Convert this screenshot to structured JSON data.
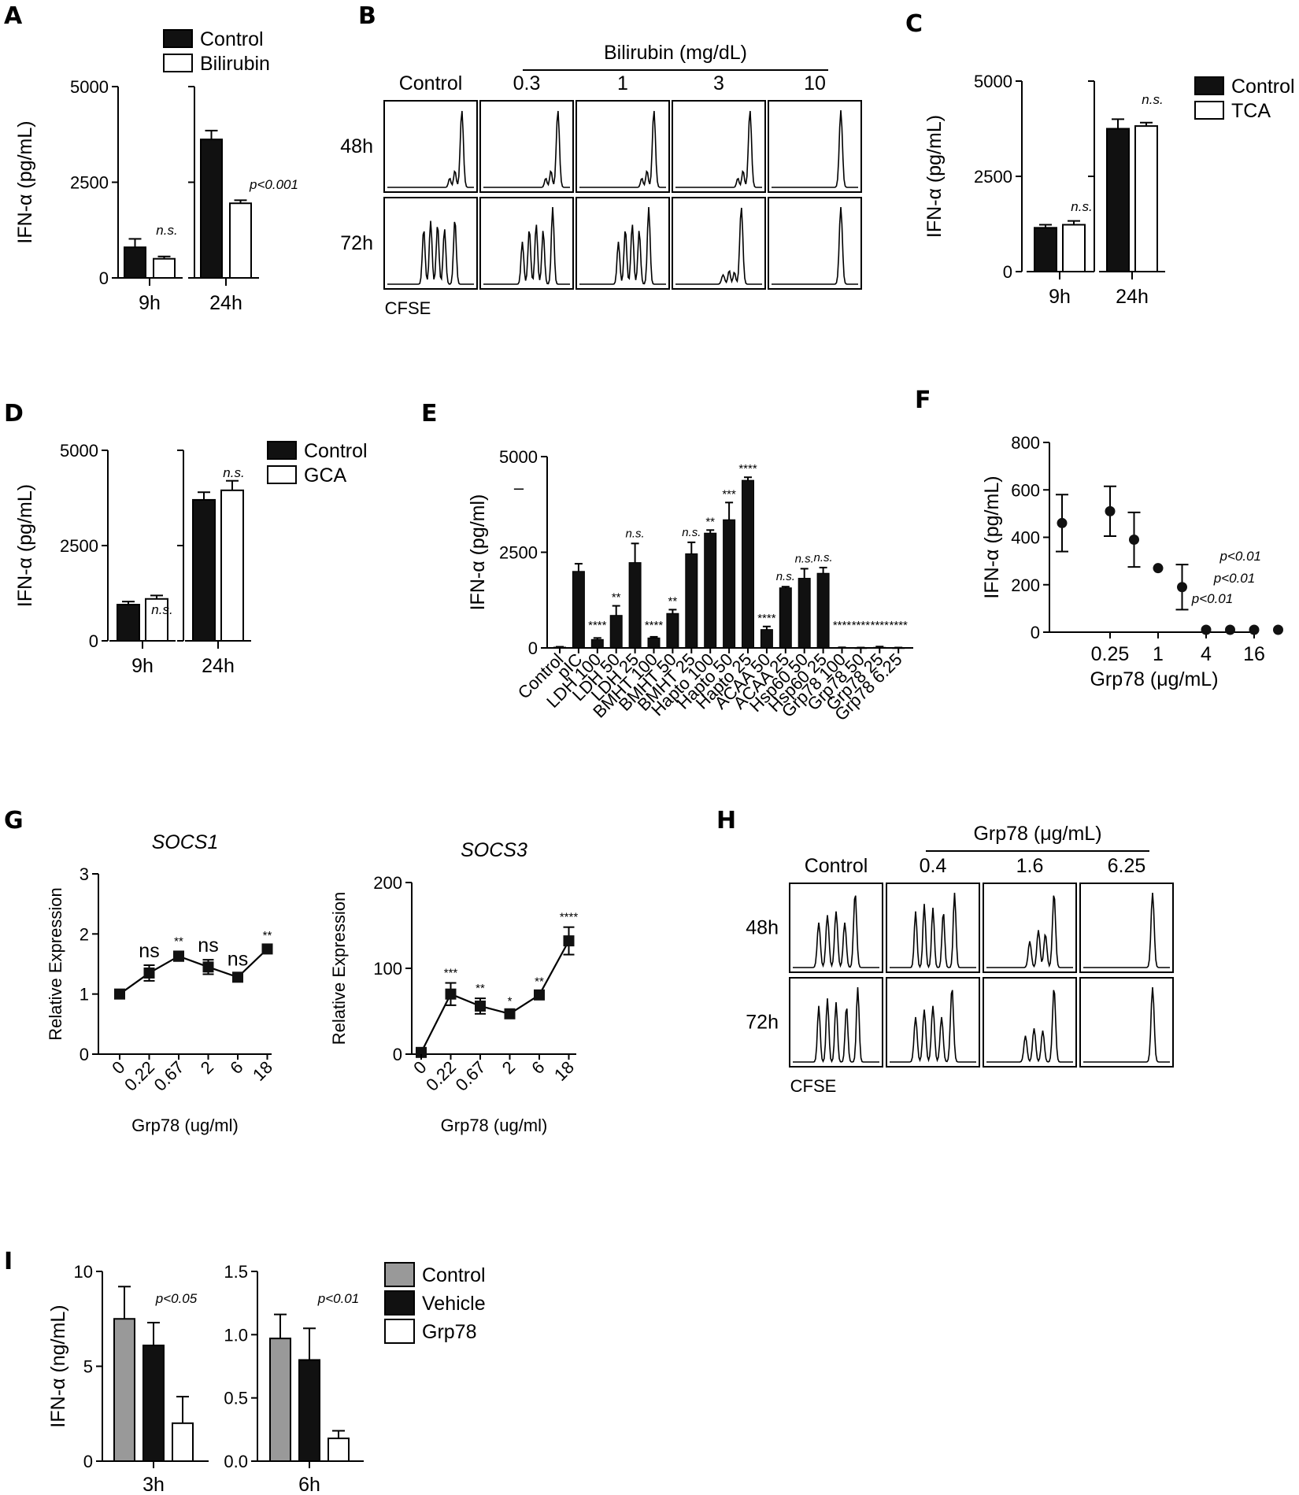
{
  "chart_data": [
    {
      "panel": "A",
      "type": "bar",
      "ylabel": "IFN-α (pg/mL)",
      "ylim": [
        0,
        5000
      ],
      "yticks": [
        "0",
        "2500",
        "5000"
      ],
      "groups": [
        "9h",
        "24h"
      ],
      "series": [
        {
          "name": "Control",
          "color": "#111111",
          "values": [
            800,
            3620
          ],
          "errors": [
            220,
            230
          ]
        },
        {
          "name": "Bilirubin",
          "color": "#ffffff",
          "values": [
            500,
            1950
          ],
          "errors": [
            60,
            80
          ]
        }
      ],
      "annotations": [
        "n.s.",
        "p<0.001"
      ]
    },
    {
      "panel": "B",
      "type": "histogram-grid",
      "title": "Bilirubin (mg/dL)",
      "columns": [
        "Control",
        "0.3",
        "1",
        "3",
        "10"
      ],
      "rows": [
        "48h",
        "72h"
      ],
      "xlabel": "CFSE"
    },
    {
      "panel": "C",
      "type": "bar",
      "ylabel": "IFN-α (pg/mL)",
      "ylim": [
        0,
        5000
      ],
      "yticks": [
        "0",
        "2500",
        "5000"
      ],
      "groups": [
        "9h",
        "24h"
      ],
      "series": [
        {
          "name": "Control",
          "color": "#111111",
          "values": [
            1150,
            3750
          ],
          "errors": [
            80,
            250
          ]
        },
        {
          "name": "TCA",
          "color": "#ffffff",
          "values": [
            1230,
            3820
          ],
          "errors": [
            100,
            90
          ]
        }
      ],
      "annotations": [
        "n.s.",
        "n.s."
      ]
    },
    {
      "panel": "D",
      "type": "bar",
      "ylabel": "IFN-α (pg/mL)",
      "ylim": [
        0,
        5000
      ],
      "yticks": [
        "0",
        "2500",
        "5000"
      ],
      "groups": [
        "9h",
        "24h"
      ],
      "series": [
        {
          "name": "Control",
          "color": "#111111",
          "values": [
            950,
            3700
          ],
          "errors": [
            80,
            200
          ]
        },
        {
          "name": "GCA",
          "color": "#ffffff",
          "values": [
            1100,
            3950
          ],
          "errors": [
            90,
            250
          ]
        }
      ],
      "annotations": [
        "n.s.",
        "n.s."
      ]
    },
    {
      "panel": "E",
      "type": "bar",
      "ylabel": "IFN-α (pg/ml)",
      "ylim": [
        0,
        5000
      ],
      "yticks": [
        "0",
        "2500",
        "5000"
      ],
      "categories": [
        "Control",
        "pIC",
        "LDH 100",
        "LDH 50",
        "LDH 25",
        "BMHT 100",
        "BMHT 50",
        "BMHT 25",
        "Hapto 100",
        "Hapto 50",
        "Hapto 25",
        "ACAA 50",
        "ACAA 25",
        "Hsp60 50",
        "Hsp60 25",
        "Grp78 100",
        "Grp78 50",
        "Grp78 25",
        "Grp78 6.25"
      ],
      "values": [
        20,
        2000,
        220,
        850,
        2230,
        260,
        900,
        2460,
        3000,
        3350,
        4380,
        480,
        1570,
        1820,
        1950,
        10,
        5,
        15,
        5
      ],
      "errors": [
        10,
        200,
        40,
        250,
        500,
        30,
        100,
        300,
        80,
        450,
        80,
        80,
        30,
        250,
        150,
        5,
        5,
        20,
        5
      ],
      "significance": [
        "",
        "",
        "****",
        "**",
        "n.s.",
        "****",
        "**",
        "n.s.",
        "**",
        "***",
        "****",
        "****",
        "n.s.",
        "n.s.",
        "n.s.",
        "****",
        "****",
        "****",
        "****"
      ],
      "stray_mark": "–"
    },
    {
      "panel": "F",
      "type": "scatter",
      "ylabel": "IFN-α (pg/mL)",
      "xlabel": "Grp78 (μg/mL)",
      "ylim": [
        0,
        800
      ],
      "yticks": [
        "0",
        "200",
        "400",
        "600",
        "800"
      ],
      "xticks": [
        "0.25",
        "1",
        "4",
        "16"
      ],
      "x": [
        0.0625,
        0.25,
        0.5,
        1,
        2,
        4,
        8,
        16,
        32
      ],
      "y": [
        460,
        510,
        390,
        270,
        190,
        10,
        10,
        10,
        10
      ],
      "errors": [
        120,
        105,
        115,
        0,
        95,
        0,
        0,
        0,
        0
      ],
      "annotations": [
        "p<0.01",
        "p<0.01",
        "p<0.01"
      ]
    },
    {
      "panel": "G1",
      "type": "line",
      "title": "SOCS1",
      "ylabel": "Relative Expression",
      "xlabel": "Grp78 (ug/ml)",
      "ylim": [
        0,
        3
      ],
      "yticks": [
        "0",
        "1",
        "2",
        "3"
      ],
      "categories": [
        "0",
        "0.22",
        "0.67",
        "2",
        "6",
        "18"
      ],
      "values": [
        1.0,
        1.35,
        1.63,
        1.45,
        1.28,
        1.75
      ],
      "errors": [
        0,
        0.13,
        0.08,
        0.12,
        0.06,
        0.06
      ],
      "significance": [
        "",
        "ns",
        "**",
        "ns",
        "ns",
        "**"
      ]
    },
    {
      "panel": "G2",
      "type": "line",
      "title": "SOCS3",
      "ylabel": "Relative Expression",
      "xlabel": "Grp78 (ug/ml)",
      "ylim": [
        0,
        200
      ],
      "yticks": [
        "0",
        "100",
        "200"
      ],
      "categories": [
        "0",
        "0.22",
        "0.67",
        "2",
        "6",
        "18"
      ],
      "values": [
        2,
        70,
        56,
        47,
        69,
        132
      ],
      "errors": [
        0,
        13,
        9,
        3,
        4,
        16
      ],
      "significance": [
        "",
        "***",
        "**",
        "*",
        "**",
        "****"
      ]
    },
    {
      "panel": "H",
      "type": "histogram-grid",
      "title": "Grp78 (μg/mL)",
      "columns": [
        "Control",
        "0.4",
        "1.6",
        "6.25"
      ],
      "rows": [
        "48h",
        "72h"
      ],
      "xlabel": "CFSE"
    },
    {
      "panel": "I1",
      "type": "bar",
      "ylabel": "IFN-α (ng/mL)",
      "ylim": [
        0,
        10
      ],
      "yticks": [
        "0",
        "5",
        "10"
      ],
      "groups": [
        "3h"
      ],
      "series": [
        {
          "name": "Control",
          "color": "#999999",
          "values": [
            7.5
          ],
          "errors": [
            1.7
          ]
        },
        {
          "name": "Vehicle",
          "color": "#111111",
          "values": [
            6.1
          ],
          "errors": [
            1.2
          ]
        },
        {
          "name": "Grp78",
          "color": "#ffffff",
          "values": [
            2.0
          ],
          "errors": [
            1.4
          ]
        }
      ],
      "annotations": [
        "p<0.05"
      ]
    },
    {
      "panel": "I2",
      "type": "bar",
      "ylim": [
        0,
        1.5
      ],
      "yticks": [
        "0.0",
        "0.5",
        "1.0",
        "1.5"
      ],
      "groups": [
        "6h"
      ],
      "series": [
        {
          "name": "Control",
          "color": "#999999",
          "values": [
            0.97
          ],
          "errors": [
            0.19
          ]
        },
        {
          "name": "Vehicle",
          "color": "#111111",
          "values": [
            0.8
          ],
          "errors": [
            0.25
          ]
        },
        {
          "name": "Grp78",
          "color": "#ffffff",
          "values": [
            0.18
          ],
          "errors": [
            0.06
          ]
        }
      ],
      "annotations": [
        "p<0.01"
      ]
    }
  ]
}
